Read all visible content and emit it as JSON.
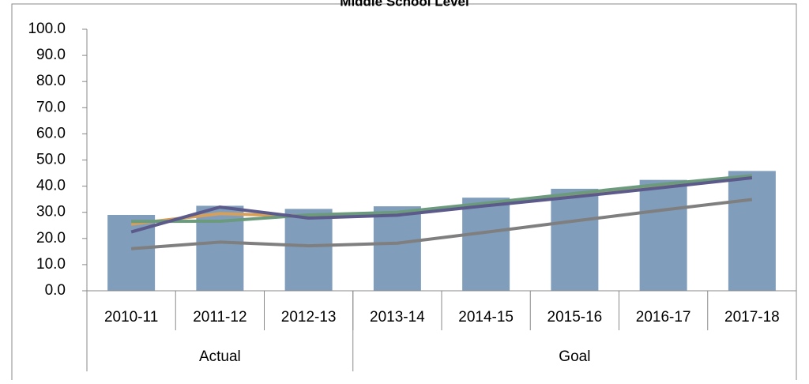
{
  "chart_data": {
    "type": "bar",
    "title": "Middle School Level",
    "categories": [
      "2010-11",
      "2011-12",
      "2012-13",
      "2013-14",
      "2014-15",
      "2015-16",
      "2016-17",
      "2017-18"
    ],
    "groups": [
      {
        "label": "Actual",
        "count": 3
      },
      {
        "label": "Goal",
        "count": 5
      }
    ],
    "values": [
      29.0,
      32.5,
      31.3,
      32.3,
      35.6,
      39.0,
      42.4,
      45.8
    ],
    "color": "#809ebc",
    "series": [
      {
        "type": "line",
        "color": "#d6a05a",
        "values": [
          25.5,
          29.5,
          28.5,
          29.5,
          33.0,
          36.7,
          40.3,
          43.8
        ]
      },
      {
        "type": "line",
        "color": "#6b9a7d",
        "values": [
          26.5,
          26.6,
          29.0,
          30.0,
          33.5,
          37.2,
          40.8,
          44.0
        ]
      },
      {
        "type": "line",
        "color": "#5b5a8a",
        "values": [
          22.5,
          32.0,
          27.8,
          28.9,
          32.5,
          35.9,
          39.5,
          43.2
        ]
      },
      {
        "type": "line",
        "color": "#7f7f7f",
        "values": [
          16.1,
          18.6,
          17.2,
          18.2,
          22.4,
          26.7,
          30.9,
          34.9
        ]
      }
    ],
    "ylim": [
      0,
      100
    ],
    "yticks": [
      {
        "value": 0,
        "label": "0.0"
      },
      {
        "value": 10,
        "label": "10.0"
      },
      {
        "value": 20,
        "label": "20.0"
      },
      {
        "value": 30,
        "label": "30.0"
      },
      {
        "value": 40,
        "label": "40.0"
      },
      {
        "value": 50,
        "label": "50.0"
      },
      {
        "value": 60,
        "label": "60.0"
      },
      {
        "value": 70,
        "label": "70.0"
      },
      {
        "value": 80,
        "label": "80.0"
      },
      {
        "value": 90,
        "label": "90.0"
      },
      {
        "value": 100,
        "label": "100.0"
      }
    ],
    "grid": false
  }
}
